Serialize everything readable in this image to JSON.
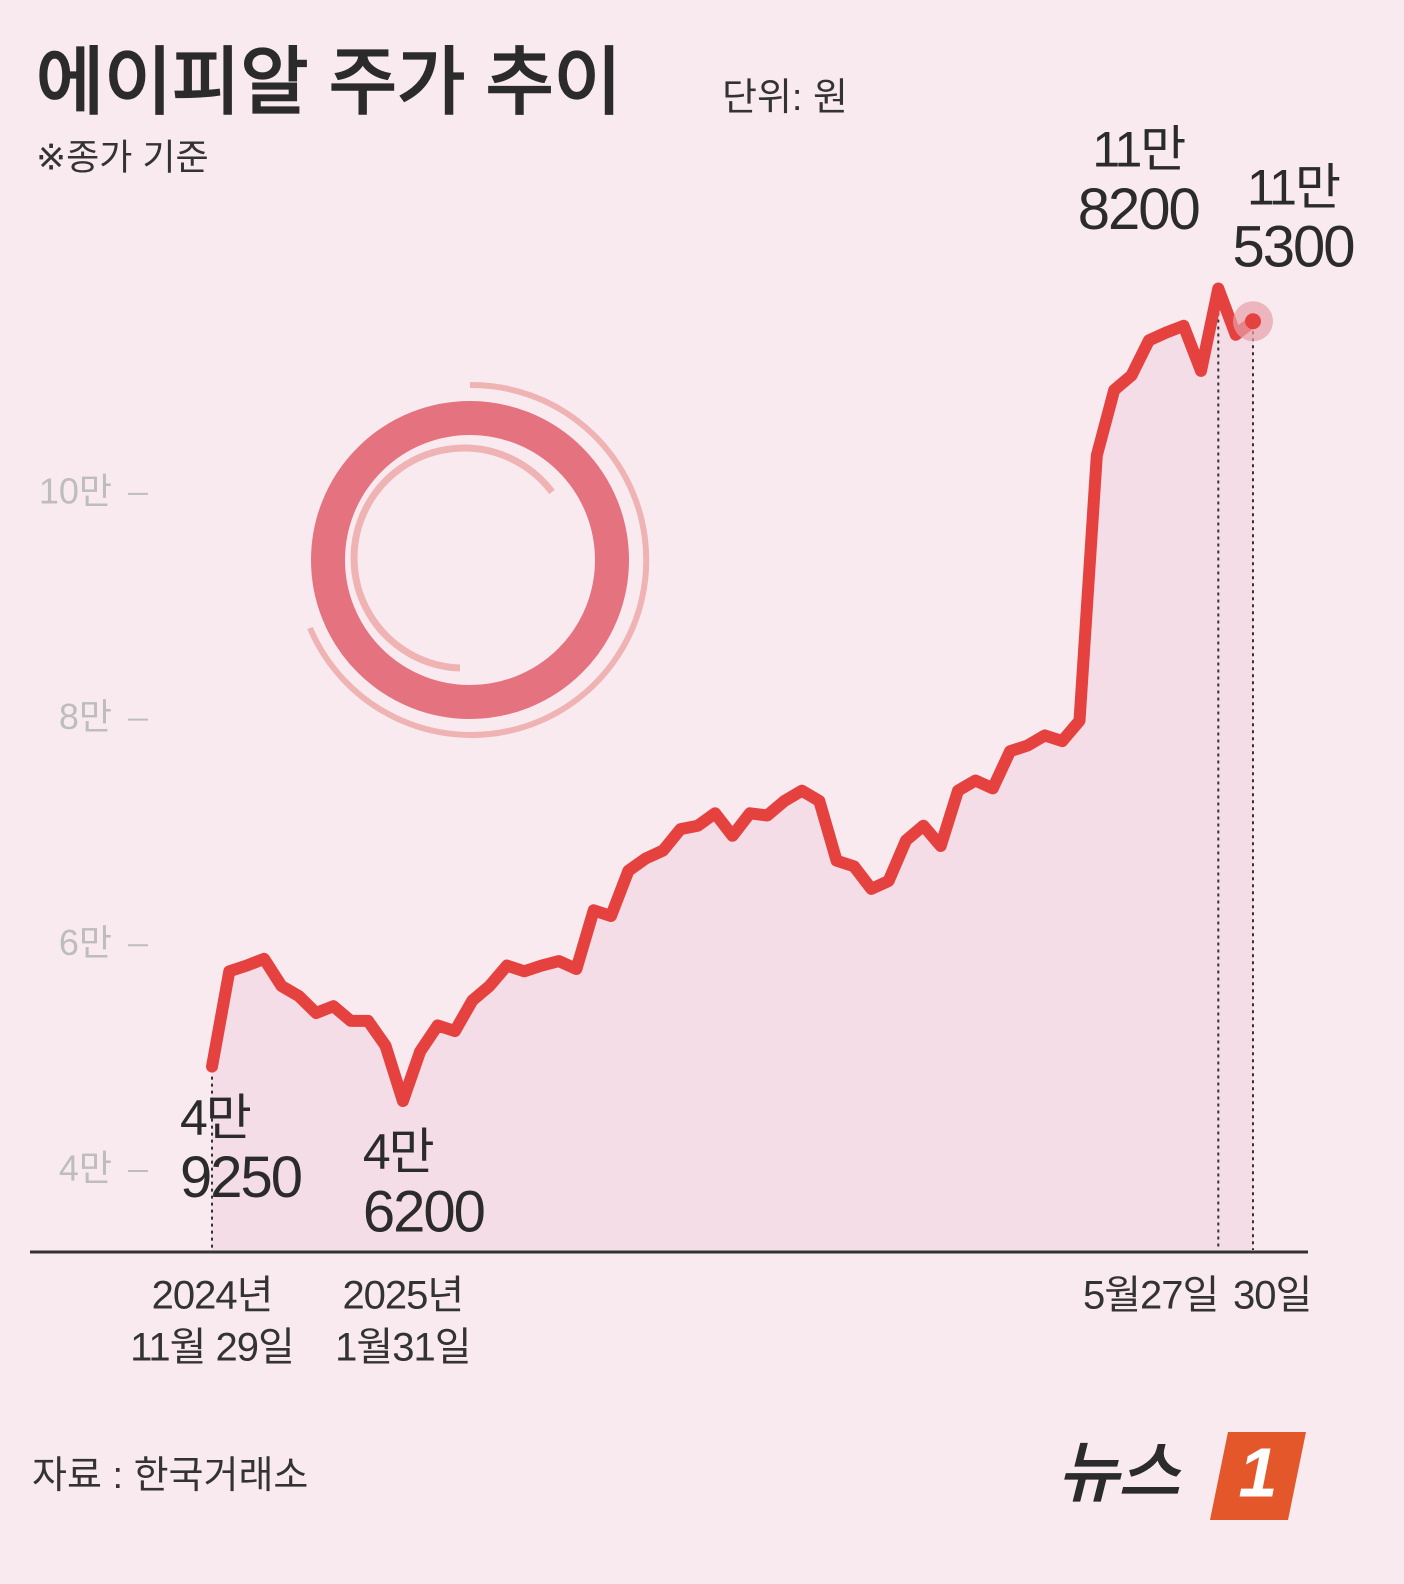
{
  "chart_data": {
    "type": "line",
    "title": "에이피알 주가 추이",
    "unit": "단위: 원",
    "note": "※종가 기준",
    "source": "자료 : 한국거래소",
    "logo": {
      "text": "뉴스",
      "number": "1"
    },
    "categories": [
      [
        "2024년",
        "11월 29일"
      ],
      null,
      null,
      null,
      null,
      null,
      null,
      null,
      null,
      null,
      null,
      [
        "2025년",
        "1월31일"
      ],
      null,
      null,
      null,
      null,
      null,
      null,
      null,
      null,
      null,
      null,
      null,
      null,
      null,
      null,
      null,
      null,
      null,
      null,
      null,
      null,
      null,
      null,
      null,
      null,
      null,
      null,
      null,
      null,
      null,
      null,
      null,
      null,
      null,
      null,
      null,
      null,
      null,
      null,
      null,
      null,
      null,
      null,
      null,
      null,
      null,
      null,
      [
        "5월27일"
      ],
      null,
      [
        "30일"
      ]
    ],
    "series": [
      {
        "color": "#e5423f",
        "values": [
          49250,
          57700,
          58200,
          58800,
          56400,
          55500,
          54000,
          54600,
          53300,
          53300,
          51100,
          46200,
          50600,
          52900,
          52400,
          55100,
          56400,
          58200,
          57700,
          58200,
          58600,
          57900,
          63100,
          62600,
          66600,
          67700,
          68400,
          70300,
          70600,
          71700,
          69700,
          71700,
          71500,
          72800,
          73700,
          72800,
          67500,
          67000,
          65000,
          65700,
          69300,
          70600,
          68800,
          73700,
          74600,
          73900,
          77200,
          77700,
          78600,
          78100,
          79900,
          103400,
          109200,
          110500,
          113600,
          114300,
          114900,
          110900,
          118200,
          114100,
          115300
        ],
        "value_labels": [
          [
            "4만",
            "9250"
          ],
          null,
          null,
          null,
          null,
          null,
          null,
          null,
          null,
          null,
          null,
          [
            "4만",
            "6200"
          ],
          null,
          null,
          null,
          null,
          null,
          null,
          null,
          null,
          null,
          null,
          null,
          null,
          null,
          null,
          null,
          null,
          null,
          null,
          null,
          null,
          null,
          null,
          null,
          null,
          null,
          null,
          null,
          null,
          null,
          null,
          null,
          null,
          null,
          null,
          null,
          null,
          null,
          null,
          null,
          null,
          null,
          null,
          null,
          null,
          null,
          null,
          [
            "11만",
            "8200"
          ],
          null,
          [
            "11만",
            "5300"
          ]
        ]
      }
    ],
    "ylim": [
      33000,
      122500
    ],
    "yticks": [
      {
        "value": 40000,
        "label": "4만"
      },
      {
        "value": 60000,
        "label": "6만"
      },
      {
        "value": 80000,
        "label": "8만"
      },
      {
        "value": 100000,
        "label": "10만"
      }
    ]
  }
}
